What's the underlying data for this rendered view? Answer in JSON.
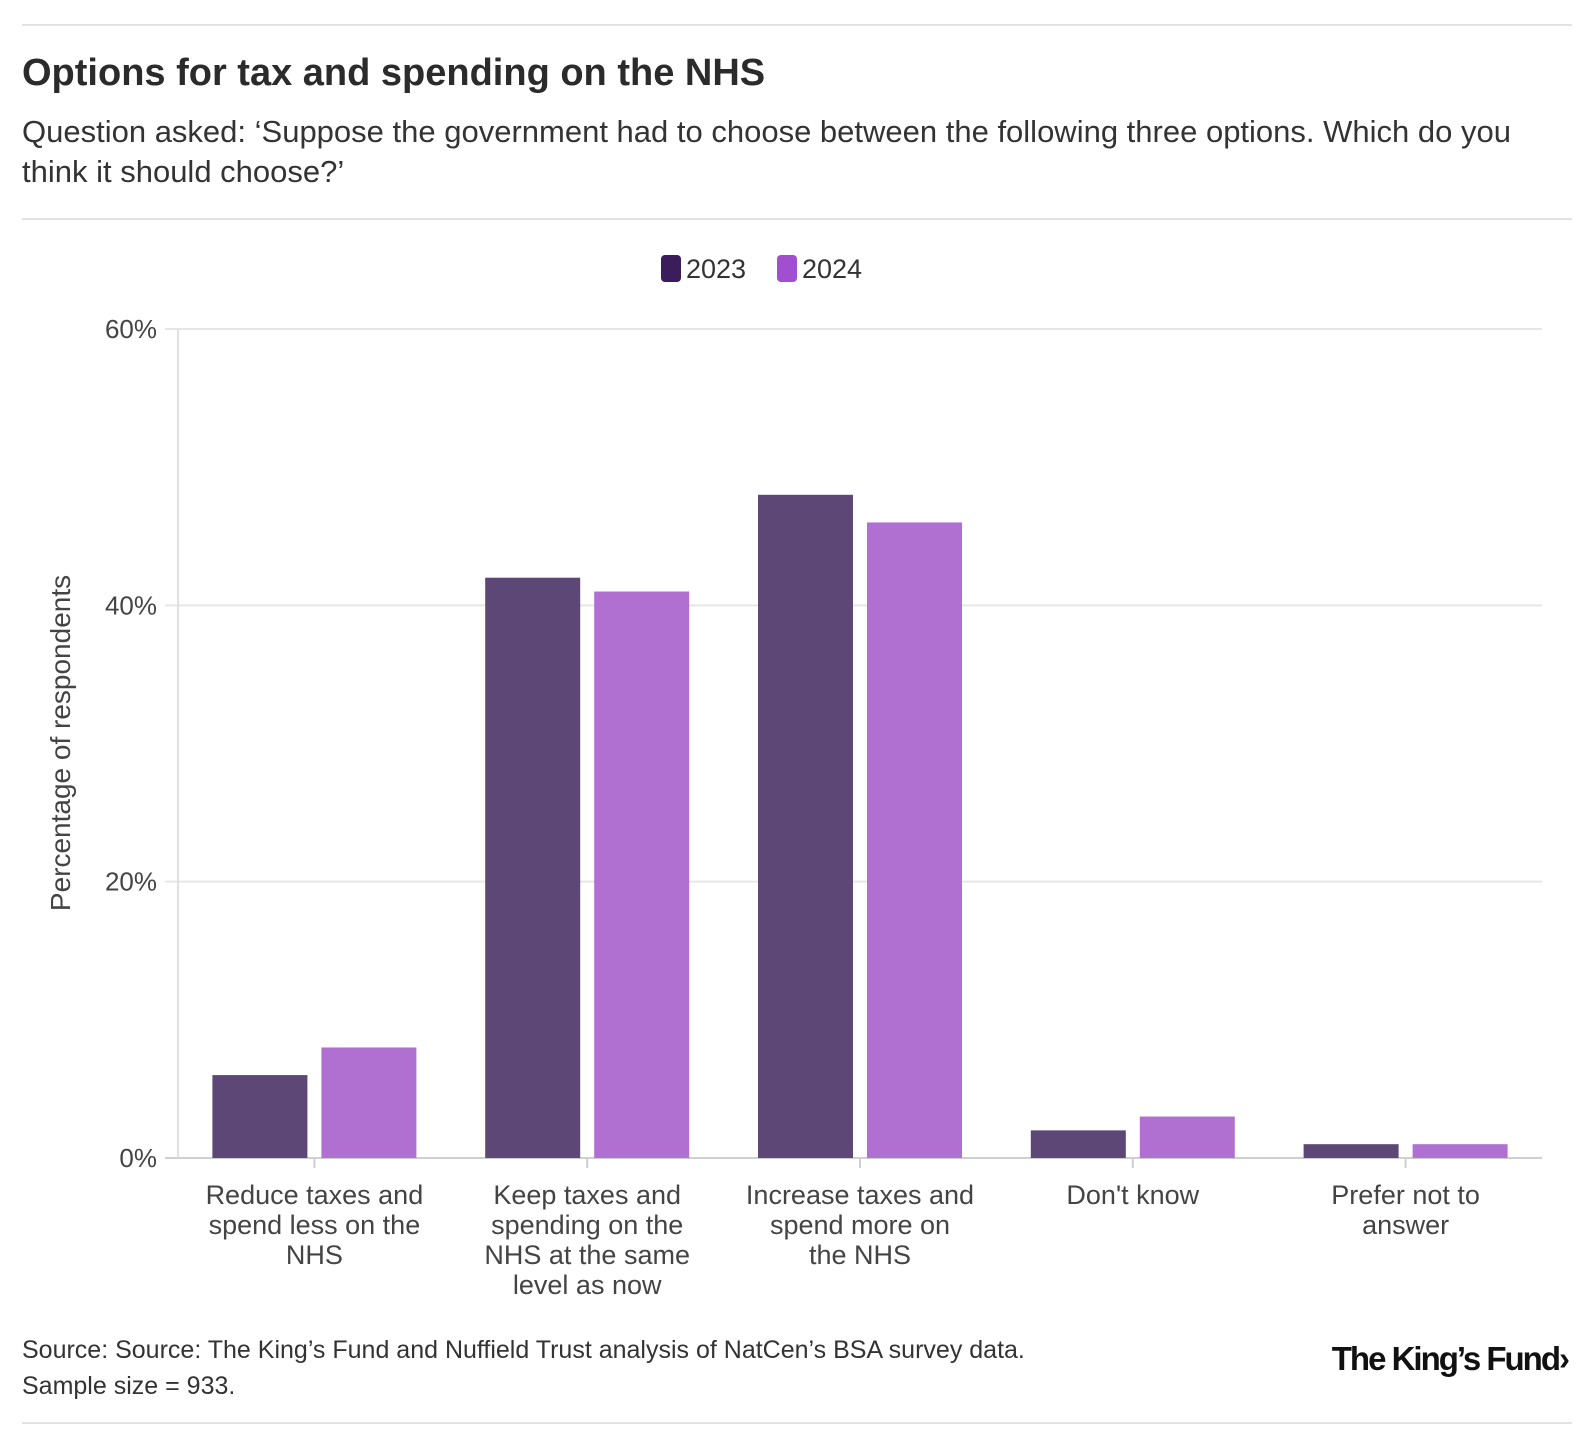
{
  "header": {
    "title": "Options for tax and spending on the NHS",
    "subtitle": "Question asked: ‘Suppose the government had to choose between the following three options. Which do you think it should choose?’"
  },
  "footer": {
    "source": "Source: Source: The King’s Fund and Nuffield Trust analysis of NatCen’s BSA survey data.",
    "sample": "Sample size = 933.",
    "logo": "The King’s Fund›"
  },
  "colors": {
    "s2023": "#5c4776",
    "s2024": "#b070d2",
    "legend2023": "#3b1d5c",
    "legend2024": "#a24fcf",
    "grid": "#e6e6e6"
  },
  "chart_data": {
    "type": "bar",
    "title": "Options for tax and spending on the NHS",
    "xlabel": "",
    "ylabel": "Percentage of respondents",
    "ylim": [
      0,
      60
    ],
    "yticks": [
      0,
      20,
      40,
      60
    ],
    "ytick_labels": [
      "0%",
      "20%",
      "40%",
      "60%"
    ],
    "legend_position": "top-center",
    "categories": [
      "Reduce taxes and spend less on the NHS",
      "Keep taxes and spending on the NHS at the same level as now",
      "Increase taxes and spend more on the NHS",
      "Don't know",
      "Prefer not to answer"
    ],
    "category_lines": [
      [
        "Reduce taxes and",
        "spend less on the",
        "NHS"
      ],
      [
        "Keep taxes and",
        "spending on the",
        "NHS at the same",
        "level as now"
      ],
      [
        "Increase taxes and",
        "spend more on",
        "the NHS"
      ],
      [
        "Don't know"
      ],
      [
        "Prefer not to",
        "answer"
      ]
    ],
    "series": [
      {
        "name": "2023",
        "values": [
          6,
          42,
          48,
          2,
          1
        ]
      },
      {
        "name": "2024",
        "values": [
          8,
          41,
          46,
          3,
          1
        ]
      }
    ]
  }
}
